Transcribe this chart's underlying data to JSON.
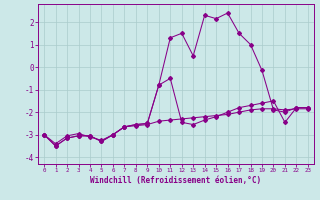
{
  "xlabel": "Windchill (Refroidissement éolien,°C)",
  "bg_color": "#cce8e8",
  "grid_color": "#aacccc",
  "line_color": "#880088",
  "x": [
    0,
    1,
    2,
    3,
    4,
    5,
    6,
    7,
    8,
    9,
    10,
    11,
    12,
    13,
    14,
    15,
    16,
    17,
    18,
    19,
    20,
    21,
    22,
    23
  ],
  "y_bot": [
    -3.0,
    -3.4,
    -3.05,
    -2.95,
    -3.1,
    -3.25,
    -3.0,
    -2.65,
    -2.6,
    -2.55,
    -2.4,
    -2.35,
    -2.3,
    -2.25,
    -2.2,
    -2.15,
    -2.1,
    -2.0,
    -1.9,
    -1.85,
    -1.85,
    -1.9,
    -1.85,
    -1.85
  ],
  "y_top": [
    -3.0,
    -3.5,
    -3.15,
    -3.05,
    -3.05,
    -3.3,
    -3.0,
    -2.65,
    -2.55,
    -2.5,
    -0.8,
    1.3,
    1.5,
    0.5,
    2.3,
    2.15,
    2.4,
    1.5,
    1.0,
    -0.15,
    -1.9,
    -2.0,
    -1.8,
    -1.8
  ],
  "y_mid": [
    -3.0,
    -3.5,
    -3.15,
    -3.05,
    -3.05,
    -3.3,
    -3.0,
    -2.65,
    -2.55,
    -2.5,
    -0.8,
    -0.5,
    -2.45,
    -2.55,
    -2.35,
    -2.2,
    -2.0,
    -1.8,
    -1.7,
    -1.6,
    -1.5,
    -2.45,
    -1.8,
    -1.8
  ],
  "yticks": [
    -4,
    -3,
    -2,
    -1,
    0,
    1,
    2
  ],
  "ylim": [
    -4.3,
    2.8
  ],
  "xlim": [
    -0.5,
    23.5
  ]
}
